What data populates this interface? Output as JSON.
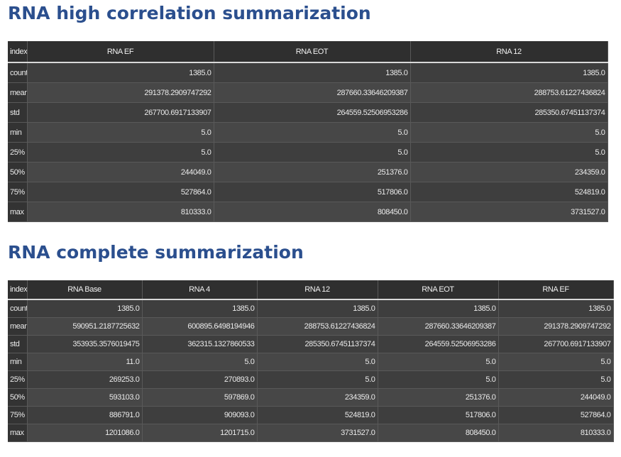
{
  "table1": {
    "title": "RNA high correlation summarization",
    "columns": [
      "index",
      "RNA EF",
      "RNA EOT",
      "RNA 12"
    ],
    "rows": [
      [
        "count",
        "1385.0",
        "1385.0",
        "1385.0"
      ],
      [
        "mean",
        "291378.2909747292",
        "287660.33646209387",
        "288753.61227436824"
      ],
      [
        "std",
        "267700.6917133907",
        "264559.52506953286",
        "285350.67451137374"
      ],
      [
        "min",
        "5.0",
        "5.0",
        "5.0"
      ],
      [
        "25%",
        "5.0",
        "5.0",
        "5.0"
      ],
      [
        "50%",
        "244049.0",
        "251376.0",
        "234359.0"
      ],
      [
        "75%",
        "527864.0",
        "517806.0",
        "524819.0"
      ],
      [
        "max",
        "810333.0",
        "808450.0",
        "3731527.0"
      ]
    ]
  },
  "table2": {
    "title": "RNA complete summarization",
    "columns": [
      "index",
      "RNA Base",
      "RNA 4",
      "RNA 12",
      "RNA EOT",
      "RNA EF"
    ],
    "rows": [
      [
        "count",
        "1385.0",
        "1385.0",
        "1385.0",
        "1385.0",
        "1385.0"
      ],
      [
        "mean",
        "590951.2187725632",
        "600895.6498194946",
        "288753.61227436824",
        "287660.33646209387",
        "291378.2909747292"
      ],
      [
        "std",
        "353935.3576019475",
        "362315.1327860533",
        "285350.67451137374",
        "264559.52506953286",
        "267700.6917133907"
      ],
      [
        "min",
        "11.0",
        "5.0",
        "5.0",
        "5.0",
        "5.0"
      ],
      [
        "25%",
        "269253.0",
        "270893.0",
        "5.0",
        "5.0",
        "5.0"
      ],
      [
        "50%",
        "593103.0",
        "597869.0",
        "234359.0",
        "251376.0",
        "244049.0"
      ],
      [
        "75%",
        "886791.0",
        "909093.0",
        "524819.0",
        "517806.0",
        "527864.0"
      ],
      [
        "max",
        "1201086.0",
        "1201715.0",
        "3731527.0",
        "808450.0",
        "810333.0"
      ]
    ]
  }
}
